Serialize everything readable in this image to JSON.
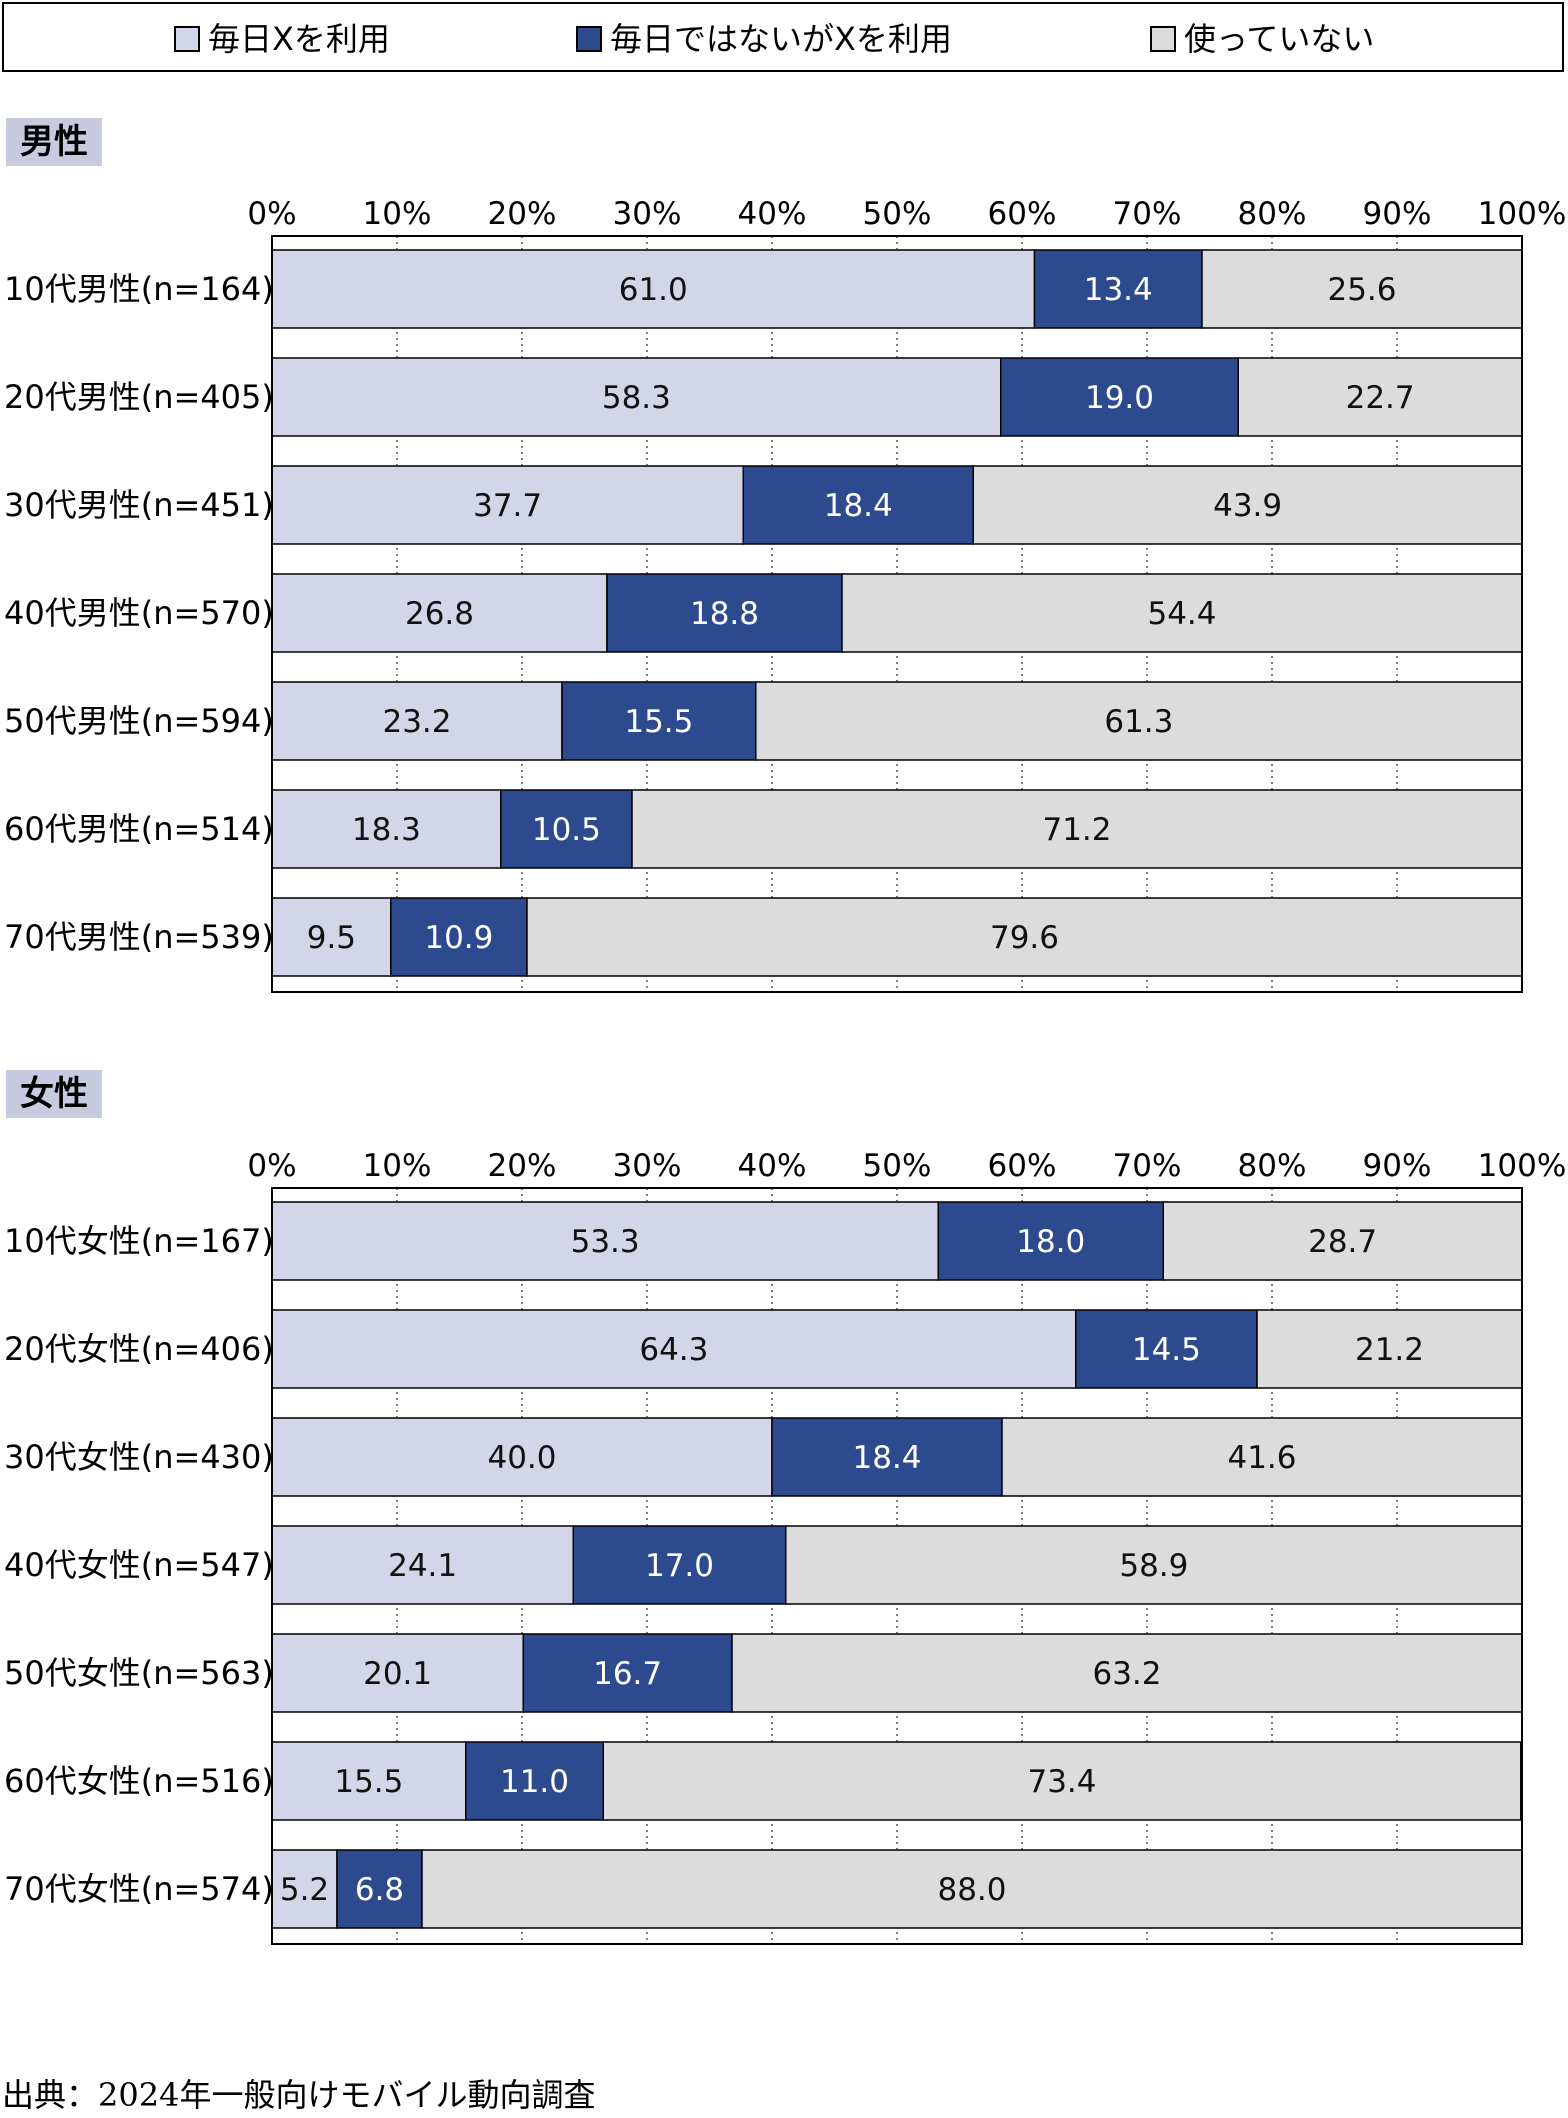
{
  "legend": [
    {
      "label": "毎日Xを利用",
      "color": "#d3d6e9"
    },
    {
      "label": "毎日ではないがXを利用",
      "color": "#2e4a8e"
    },
    {
      "label": "使っていない",
      "color": "#dcdcdc"
    }
  ],
  "source": "出典：2024年一般向けモバイル動向調査",
  "chart_data": [
    {
      "type": "bar",
      "orientation": "horizontal",
      "stacked": true,
      "title": "男性",
      "xlim": [
        0,
        100
      ],
      "xticks": [
        "0%",
        "10%",
        "20%",
        "30%",
        "40%",
        "50%",
        "60%",
        "70%",
        "80%",
        "90%",
        "100%"
      ],
      "categories": [
        "10代男性(n=164)",
        "20代男性(n=405)",
        "30代男性(n=451)",
        "40代男性(n=570)",
        "50代男性(n=594)",
        "60代男性(n=514)",
        "70代男性(n=539)"
      ],
      "series": [
        {
          "name": "毎日Xを利用",
          "values": [
            61.0,
            58.3,
            37.7,
            26.8,
            23.2,
            18.3,
            9.5
          ]
        },
        {
          "name": "毎日ではないがXを利用",
          "values": [
            13.4,
            19.0,
            18.4,
            18.8,
            15.5,
            10.5,
            10.9
          ]
        },
        {
          "name": "使っていない",
          "values": [
            25.6,
            22.7,
            43.9,
            54.4,
            61.3,
            71.2,
            79.6
          ]
        }
      ]
    },
    {
      "type": "bar",
      "orientation": "horizontal",
      "stacked": true,
      "title": "女性",
      "xlim": [
        0,
        100
      ],
      "xticks": [
        "0%",
        "10%",
        "20%",
        "30%",
        "40%",
        "50%",
        "60%",
        "70%",
        "80%",
        "90%",
        "100%"
      ],
      "categories": [
        "10代女性(n=167)",
        "20代女性(n=406)",
        "30代女性(n=430)",
        "40代女性(n=547)",
        "50代女性(n=563)",
        "60代女性(n=516)",
        "70代女性(n=574)"
      ],
      "series": [
        {
          "name": "毎日Xを利用",
          "values": [
            53.3,
            64.3,
            40.0,
            24.1,
            20.1,
            15.5,
            5.2
          ]
        },
        {
          "name": "毎日ではないがXを利用",
          "values": [
            18.0,
            14.5,
            18.4,
            17.0,
            16.7,
            11.0,
            6.8
          ]
        },
        {
          "name": "使っていない",
          "values": [
            28.7,
            21.2,
            41.6,
            58.9,
            63.2,
            73.4,
            88.0
          ]
        }
      ]
    }
  ]
}
